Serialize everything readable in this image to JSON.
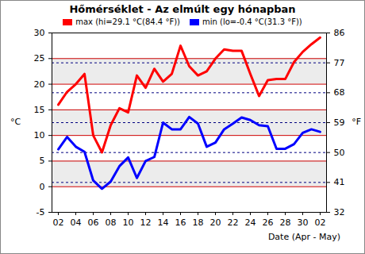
{
  "chart_data": {
    "type": "line",
    "title": "Hőmérséklet - Az elmúlt egy hónapban",
    "x_label": "Date (Apr - May)",
    "y_label": "°C",
    "y2_label": "°F",
    "categories": [
      "02",
      null,
      "04",
      null,
      "06",
      null,
      "08",
      null,
      "10",
      null,
      "12",
      null,
      "14",
      null,
      "16",
      null,
      "18",
      null,
      "20",
      null,
      "22",
      null,
      "24",
      null,
      "26",
      null,
      "28",
      null,
      "30",
      null,
      "02"
    ],
    "series": [
      {
        "name": "max (hi=29.1 °C(84.4 °F))",
        "color": "#ff0000",
        "values": [
          16,
          18.5,
          20,
          22,
          10,
          6.7,
          12,
          15.3,
          14.5,
          21.7,
          19.3,
          23,
          20.5,
          22,
          27.5,
          23.5,
          21.7,
          22.5,
          25,
          26.8,
          26.5,
          26.5,
          22,
          17.7,
          20.8,
          21,
          21,
          24.3,
          26.3,
          27.8,
          29.1
        ]
      },
      {
        "name": "min (lo=-0.4 °C(31.3 °F))",
        "color": "#0000ff",
        "values": [
          7.3,
          9.7,
          7.8,
          6.8,
          1.2,
          -0.4,
          1,
          4,
          5.7,
          1.7,
          5,
          5.8,
          12.5,
          11.2,
          11.2,
          13.6,
          12.3,
          7.8,
          8.6,
          11.2,
          12.3,
          13.5,
          13,
          12,
          11.8,
          7.4,
          7.4,
          8.3,
          10.5,
          11.2,
          10.7
        ]
      }
    ],
    "ylim": [
      -5,
      30
    ],
    "yticks": [
      -5,
      0,
      5,
      10,
      15,
      20,
      25,
      30
    ],
    "y2lim": [
      32,
      86
    ],
    "y2ticks": [
      32,
      41,
      50,
      59,
      68,
      77,
      86
    ],
    "grid": true,
    "legend": "top"
  }
}
